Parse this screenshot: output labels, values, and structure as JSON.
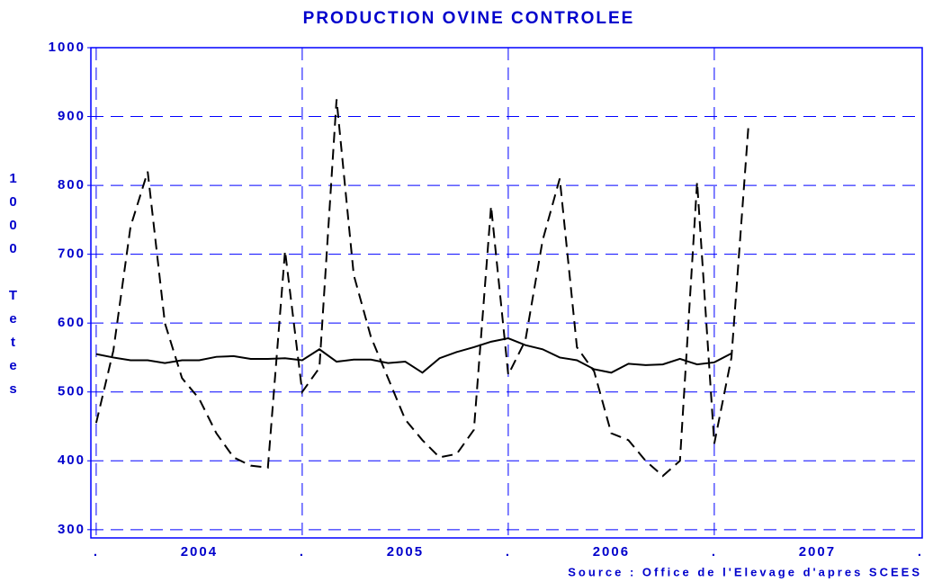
{
  "chart_data": {
    "type": "line",
    "title": "PRODUCTION OVINE CONTROLEE",
    "y_label": "1000 Tetes",
    "source": "Source : Office de l'Elevage d'apres SCEES",
    "x": [
      0,
      1,
      2,
      3,
      4,
      5,
      6,
      7,
      8,
      9,
      10,
      11,
      12,
      13,
      14,
      15,
      16,
      17,
      18,
      19,
      20,
      21,
      22,
      23,
      24,
      25,
      26,
      27,
      28,
      29,
      30,
      31,
      32,
      33,
      34,
      35,
      36,
      37,
      38
    ],
    "series": [
      {
        "color": "#000000",
        "style": "dashed",
        "values": [
          455,
          560,
          740,
          820,
          600,
          520,
          490,
          440,
          405,
          393,
          390,
          705,
          500,
          535,
          925,
          670,
          580,
          520,
          460,
          430,
          405,
          410,
          445,
          770,
          525,
          575,
          720,
          810,
          565,
          530,
          440,
          430,
          400,
          378,
          400,
          805,
          425,
          550,
          890
        ]
      },
      {
        "color": "#000000",
        "style": "solid",
        "values": [
          555,
          550,
          546,
          546,
          542,
          546,
          546,
          551,
          552,
          548,
          548,
          549,
          546,
          562,
          544,
          547,
          547,
          542,
          544,
          528,
          549,
          558,
          565,
          573,
          578,
          568,
          562,
          550,
          546,
          533,
          528,
          541,
          539,
          540,
          548,
          540,
          543,
          556,
          null
        ]
      }
    ],
    "xlim": [
      -0.31,
      48.11
    ],
    "xticks": [
      {
        "value": 0,
        "label": "."
      },
      {
        "value": 6,
        "label": "2004"
      },
      {
        "value": 12,
        "label": "."
      },
      {
        "value": 18,
        "label": "2005"
      },
      {
        "value": 24,
        "label": "."
      },
      {
        "value": 30,
        "label": "2006"
      },
      {
        "value": 36,
        "label": "."
      },
      {
        "value": 42,
        "label": "2007"
      },
      {
        "value": 48,
        "label": "."
      }
    ],
    "ylim": [
      288,
      1000
    ],
    "yticks": [
      300,
      400,
      500,
      600,
      700,
      800,
      900,
      1000
    ],
    "grid": true,
    "axis_color": "#0000ff",
    "text_color": "#0000cc"
  }
}
